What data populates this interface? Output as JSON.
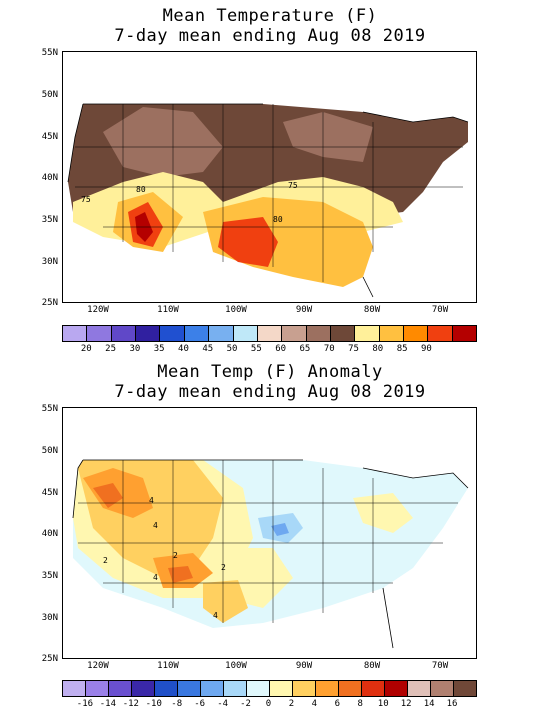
{
  "top": {
    "title_line1": "Mean Temperature (F)",
    "title_line2": "7-day mean ending Aug 08 2019",
    "lat_labels": [
      "55N",
      "50N",
      "45N",
      "40N",
      "35N",
      "30N",
      "25N"
    ],
    "lon_labels": [
      "120W",
      "110W",
      "100W",
      "90W",
      "80W",
      "70W"
    ],
    "contour_labels": [
      "80",
      "75",
      "75",
      "80"
    ],
    "legend_labels": [
      "20",
      "25",
      "30",
      "35",
      "40",
      "45",
      "50",
      "55",
      "60",
      "65",
      "70",
      "75",
      "80",
      "85",
      "90"
    ],
    "legend_colors": [
      "#b9a8f0",
      "#8f78e0",
      "#6048c8",
      "#3020a0",
      "#2050d0",
      "#3c80e8",
      "#78b0f0",
      "#bfe8f8",
      "#f4d8c8",
      "#c8a090",
      "#9c7060",
      "#6e4838",
      "#fff09a",
      "#ffc040",
      "#ff8a00",
      "#f04010",
      "#b40000"
    ]
  },
  "bottom": {
    "title_line1": "Mean Temp (F) Anomaly",
    "title_line2": "7-day mean ending Aug 08 2019",
    "lat_labels": [
      "55N",
      "50N",
      "45N",
      "40N",
      "35N",
      "30N",
      "25N"
    ],
    "lon_labels": [
      "120W",
      "110W",
      "100W",
      "90W",
      "80W",
      "70W"
    ],
    "contour_labels": [
      "4",
      "4",
      "2",
      "2",
      "4",
      "2",
      "4"
    ],
    "legend_labels": [
      "-16",
      "-14",
      "-12",
      "-10",
      "-8",
      "-6",
      "-4",
      "-2",
      "0",
      "2",
      "4",
      "6",
      "8",
      "10",
      "12",
      "14",
      "16"
    ],
    "legend_colors": [
      "#c0b0f0",
      "#9a80e8",
      "#6a50d0",
      "#3a28a8",
      "#2050c8",
      "#3a78e0",
      "#6ea8f0",
      "#a8d8f8",
      "#e0f8fc",
      "#fff7b0",
      "#ffd060",
      "#ffa030",
      "#f07020",
      "#e03010",
      "#b00000",
      "#e0c0b8",
      "#b08070",
      "#704838"
    ]
  }
}
